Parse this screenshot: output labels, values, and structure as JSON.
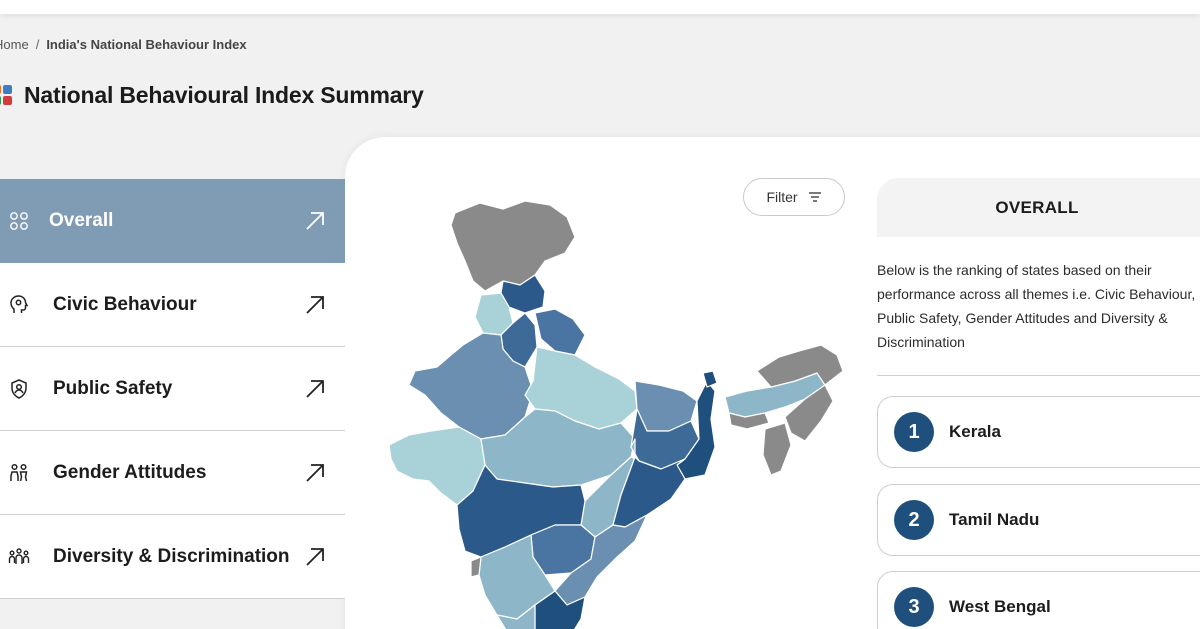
{
  "breadcrumb": {
    "home": "Home",
    "separator": "/",
    "current": "India's National Behaviour Index"
  },
  "page": {
    "title": "National Behavioural Index Summary",
    "logo_icon": "grid-flag-icon"
  },
  "sidebar": {
    "items": [
      {
        "label": "Overall",
        "icon": "grid-icon",
        "active": true
      },
      {
        "label": "Civic Behaviour",
        "icon": "head-icon",
        "active": false
      },
      {
        "label": "Public Safety",
        "icon": "shield-person-icon",
        "active": false
      },
      {
        "label": "Gender Attitudes",
        "icon": "people-icon",
        "active": false
      },
      {
        "label": "Diversity & Discrimination",
        "icon": "group-icon",
        "active": false
      }
    ]
  },
  "filter": {
    "label": "Filter",
    "icon": "filter-lines-icon"
  },
  "panel": {
    "heading": "OVERALL",
    "description": "Below is the ranking of states based on their performance across all themes i.e. Civic Behaviour, Public Safety, Gender Attitudes and Diversity & Discrimination"
  },
  "rankings": [
    {
      "rank": "1",
      "state": "Kerala"
    },
    {
      "rank": "2",
      "state": "Tamil Nadu"
    },
    {
      "rank": "3",
      "state": "West Bengal"
    }
  ],
  "colors": {
    "active_tab": "#7f9cb4",
    "rank_badge": "#1f4f7c",
    "map_dark": "#2b5a8a",
    "map_mid": "#6a8fb0",
    "map_light": "#8db6c9",
    "map_pale": "#a9d2d8",
    "map_grey": "#8a8a8a"
  }
}
